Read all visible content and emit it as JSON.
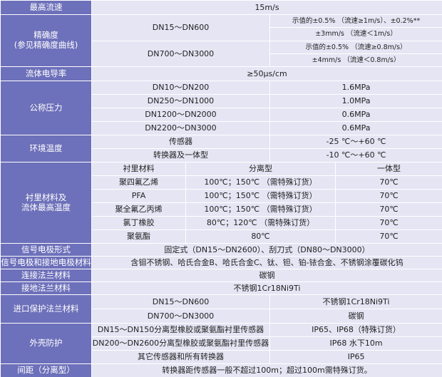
{
  "sections": [
    {
      "label": "最高流速",
      "value": "15m/s"
    },
    {
      "label": [
        "精确度",
        "(参见精确度曲线)"
      ],
      "groups": [
        {
          "size": "DN15～DN600",
          "specs": [
            "示值的±0.5%  （流速≥1m/s）、±0.2%**",
            "±3mm/s  （流速＜1m/s）"
          ]
        },
        {
          "size": "DN700～DN3000",
          "specs": [
            "示值的±0.5%  （流速≥0.8m/s）",
            "±4mm/s  （流速＜0.8m/s）"
          ]
        }
      ]
    },
    {
      "label": "流体电导率",
      "value": "≥50μs/cm"
    },
    {
      "label": "公称压力",
      "rows": [
        [
          "DN10～DN200",
          "1.6MPa"
        ],
        [
          "DN250～DN1000",
          "1.0MPa"
        ],
        [
          "DN1200～DN2000",
          "0.6MPa"
        ],
        [
          "DN2200～DN3000",
          "0.6MPa"
        ]
      ]
    },
    {
      "label": "环境温度",
      "rows": [
        [
          "传感器",
          "-25 ℃～+60 ℃"
        ],
        [
          "转换器及一体型",
          "-10 ℃～+60 ℃"
        ]
      ]
    },
    {
      "label": [
        "衬里材料及",
        "流体最高温度"
      ],
      "header": [
        "衬里材料",
        "分离型",
        "一体型"
      ],
      "rows": [
        [
          "聚四氟乙烯",
          "100℃；150℃ （需特殊订货）",
          "70℃"
        ],
        [
          "PFA",
          "100℃；150℃ （需特殊订货）",
          "70℃"
        ],
        [
          "聚全氟乙丙烯",
          "100℃；150℃ （需特殊订货）",
          "70℃"
        ],
        [
          "氯丁橡胶",
          "80℃；120℃ （需特殊订货）",
          "70℃"
        ],
        [
          "聚氨酯",
          "80℃",
          "70℃"
        ]
      ]
    },
    {
      "label": "信号电极形式",
      "value": "固定式（DN15～DN2600）、刮刀式（DN80～DN3000）"
    },
    {
      "label": "信号电极和接地电极材料",
      "value": "含钼不锈钢、哈氏合金B、哈氏合金C、钛、钽、铂-铱合金、不锈钢涂覆碳化钨"
    },
    {
      "label": "连接法兰材料",
      "value": "碳钢"
    },
    {
      "label": "接地法兰材料",
      "value": "不锈钢1Cr18Ni9Ti"
    },
    {
      "label": "进口保护法兰材料",
      "rows": [
        [
          "DN15～DN600",
          "不锈钢1Cr18Ni9Ti"
        ],
        [
          "DN700～DN3000",
          "碳钢"
        ]
      ]
    },
    {
      "label": "外壳防护",
      "rows": [
        [
          "DN15～DN150分离型橡胶或聚氨酯衬里传感器",
          "IP65、IP68（特殊订货）"
        ],
        [
          "DN200～DN2600分离型橡胶或聚氨酯衬里传感器",
          "IP68  水下10m"
        ],
        [
          "其它传感器和所有转换器",
          "IP65"
        ]
      ]
    },
    {
      "label": "间距（分离型）",
      "value": "转换器距传感器一般不超过100m；超过100m需特殊订货。"
    }
  ]
}
